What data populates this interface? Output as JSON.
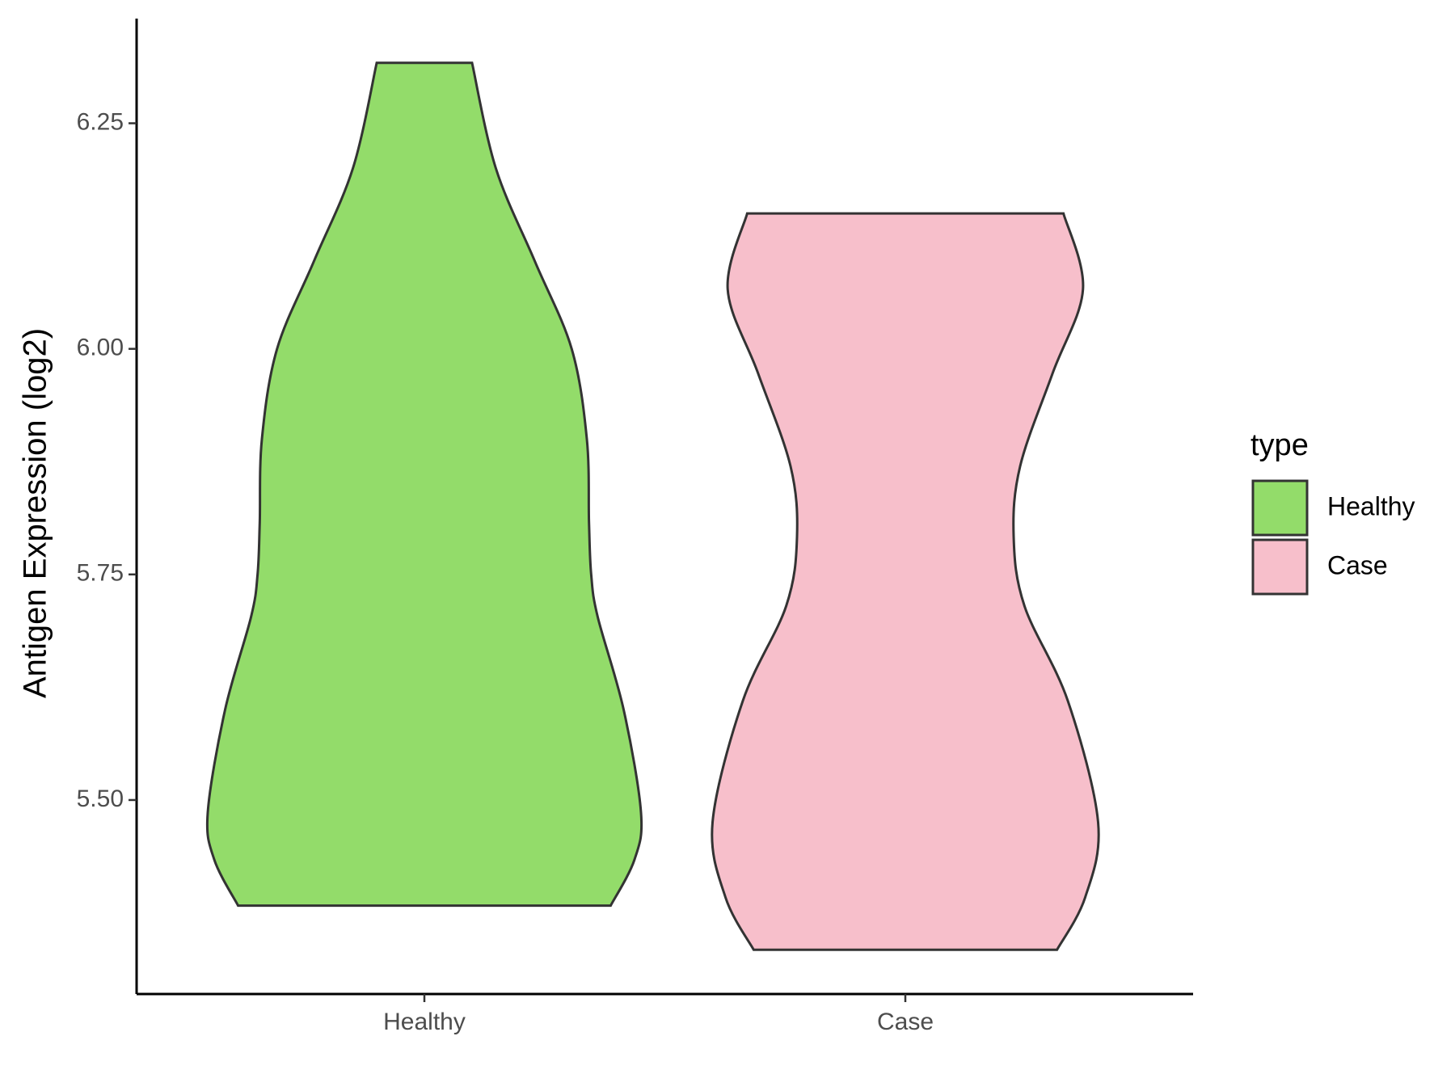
{
  "chart_data": {
    "type": "violin",
    "y_label": "Antigen Expression (log2)",
    "categories": [
      "Healthy",
      "Case"
    ],
    "legend_title": "type",
    "legend_position": "right",
    "ylim": [
      5.285,
      6.366
    ],
    "yticks": [
      {
        "value": 5.5,
        "label": "5.50"
      },
      5.75,
      {
        "value": 6.0,
        "label": "6.00"
      },
      6.25
    ],
    "series": [
      {
        "name": "Healthy",
        "color": "#93dc6a",
        "y": [
          6.317,
          6.2,
          6.097,
          6.0,
          5.9,
          5.807,
          5.75,
          5.703,
          5.6,
          5.486,
          5.434,
          5.383
        ],
        "density": [
          0.22,
          0.33,
          0.51,
          0.68,
          0.75,
          0.76,
          0.77,
          0.8,
          0.92,
          1.0,
          0.97,
          0.86
        ]
      },
      {
        "name": "Case",
        "color": "#f7bfcb",
        "y": [
          6.15,
          6.066,
          5.973,
          5.87,
          5.792,
          5.715,
          5.61,
          5.475,
          5.392,
          5.334
        ],
        "density": [
          0.73,
          0.82,
          0.68,
          0.53,
          0.5,
          0.55,
          0.75,
          0.89,
          0.83,
          0.7
        ]
      }
    ]
  }
}
